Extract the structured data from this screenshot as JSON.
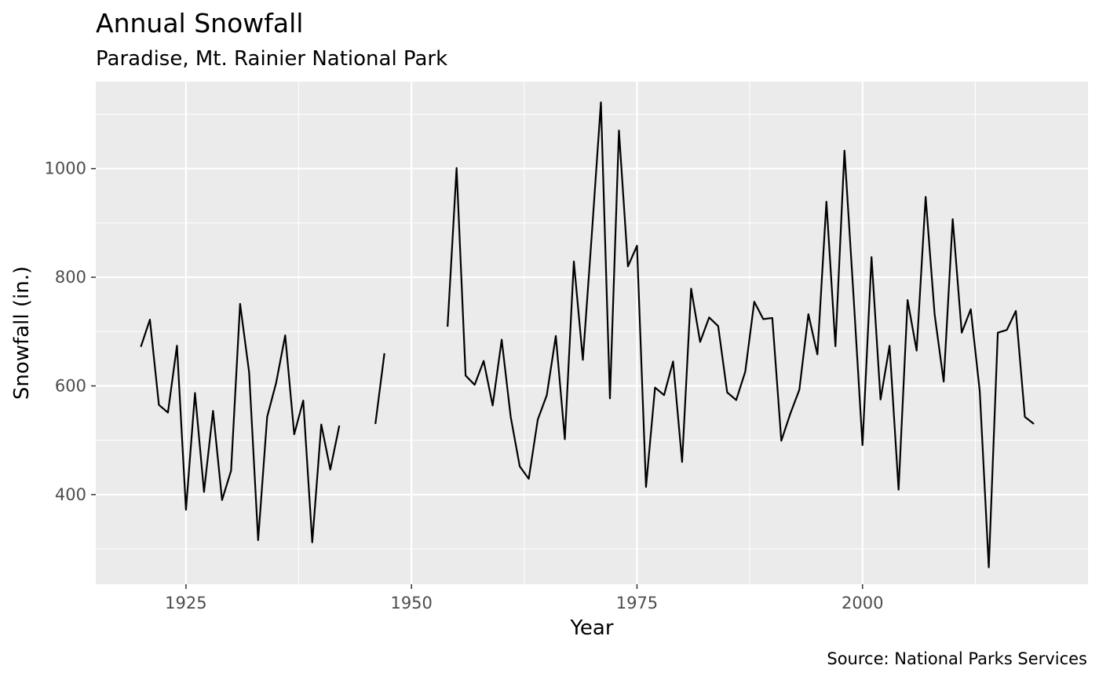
{
  "chart_data": {
    "type": "line",
    "title": "Annual Snowfall",
    "subtitle": "Paradise, Mt. Rainier National Park",
    "xlabel": "Year",
    "ylabel": "Snowfall (in.)",
    "caption": "Source: National Parks Services",
    "xlim": [
      1915,
      2025
    ],
    "ylim": [
      235,
      1160
    ],
    "x_ticks": [
      1925,
      1950,
      1975,
      2000
    ],
    "y_ticks": [
      400,
      600,
      800,
      1000
    ],
    "x_ticks_label": [
      "1925",
      "1950",
      "1975",
      "2000"
    ],
    "y_ticks_label": [
      "400",
      "600",
      "800",
      "1000"
    ],
    "grid": true,
    "series": [
      {
        "color": "#000000",
        "x": [
          1920,
          1921,
          1922,
          1923,
          1924,
          1925,
          1926,
          1927,
          1928,
          1929,
          1930,
          1931,
          1932,
          1933,
          1934,
          1935,
          1936,
          1937,
          1938,
          1939,
          1940,
          1941,
          1942,
          1943,
          1944,
          1945,
          1946,
          1947,
          1948,
          1949,
          1950,
          1951,
          1952,
          1953,
          1954,
          1955,
          1956,
          1957,
          1958,
          1959,
          1960,
          1961,
          1962,
          1963,
          1964,
          1965,
          1966,
          1967,
          1968,
          1969,
          1970,
          1971,
          1972,
          1973,
          1974,
          1975,
          1976,
          1977,
          1978,
          1979,
          1980,
          1981,
          1982,
          1983,
          1984,
          1985,
          1986,
          1987,
          1988,
          1989,
          1990,
          1991,
          1992,
          1993,
          1994,
          1995,
          1996,
          1997,
          1998,
          1999,
          2000,
          2001,
          2002,
          2003,
          2004,
          2005,
          2006,
          2007,
          2008,
          2009,
          2010,
          2011,
          2012,
          2013,
          2014,
          2015,
          2016,
          2017,
          2018,
          2019
        ],
        "y": [
          672,
          722,
          565,
          551,
          674,
          372,
          587,
          405,
          554,
          390,
          444,
          751,
          625,
          316,
          543,
          606,
          693,
          511,
          573,
          312,
          529,
          446,
          527,
          null,
          null,
          null,
          530,
          660,
          null,
          null,
          null,
          null,
          null,
          null,
          709,
          1001,
          619,
          602,
          646,
          564,
          685,
          543,
          452,
          429,
          538,
          583,
          692,
          502,
          829,
          648,
          881,
          1122,
          577,
          1070,
          820,
          858,
          414,
          597,
          583,
          645,
          460,
          779,
          681,
          726,
          710,
          588,
          574,
          626,
          755,
          723,
          725,
          499,
          549,
          593,
          732,
          658,
          939,
          673,
          1033,
          767,
          491,
          837,
          575,
          674,
          409,
          758,
          665,
          948,
          731,
          608,
          907,
          698,
          741,
          590,
          266,
          698,
          703,
          738,
          543,
          530
        ]
      }
    ]
  }
}
